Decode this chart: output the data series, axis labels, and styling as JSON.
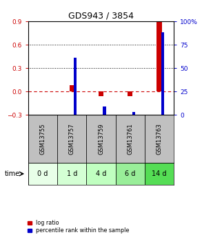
{
  "title": "GDS943 / 3854",
  "samples": [
    "GSM13755",
    "GSM13757",
    "GSM13759",
    "GSM13761",
    "GSM13763"
  ],
  "timepoints": [
    "0 d",
    "1 d",
    "4 d",
    "6 d",
    "14 d"
  ],
  "log_ratio": [
    0.0,
    0.08,
    -0.06,
    -0.055,
    0.9
  ],
  "percentile_rank": [
    0.0,
    61.0,
    9.0,
    3.0,
    88.0
  ],
  "ylim_left": [
    -0.3,
    0.9
  ],
  "ylim_right": [
    0,
    100
  ],
  "yticks_left": [
    -0.3,
    0.0,
    0.3,
    0.6,
    0.9
  ],
  "yticks_right": [
    0,
    25,
    50,
    75,
    100
  ],
  "ytick_labels_right": [
    "0",
    "25",
    "50",
    "75",
    "100%"
  ],
  "red_color": "#cc0000",
  "blue_color": "#0000cc",
  "bg_color_plot": "#ffffff",
  "bg_color_gsm": "#c0c0c0",
  "bg_color_time": [
    "#e8ffe8",
    "#d4ffd4",
    "#c0ffc0",
    "#99ee99",
    "#55dd55"
  ],
  "legend_red": "log ratio",
  "legend_blue": "percentile rank within the sample",
  "time_label": "time"
}
